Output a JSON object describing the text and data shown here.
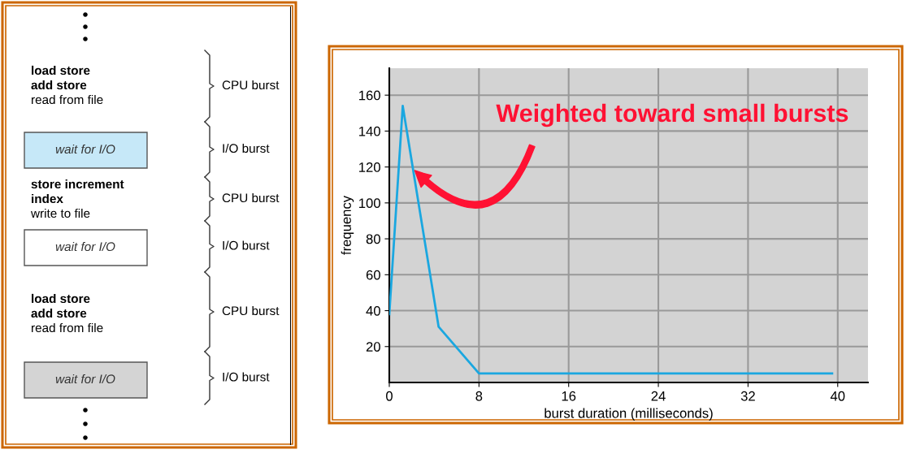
{
  "chart_data": [
    {
      "type": "other",
      "annotations": [
        "load store",
        "add store",
        "read from file",
        "CPU burst",
        "wait for I/O",
        "I/O burst",
        "store increment",
        "index",
        "write to file",
        "CPU burst",
        "wait for I/O",
        "I/O burst",
        "load store",
        "add store",
        "read from file",
        "CPU burst",
        "wait for I/O",
        "I/O burst"
      ]
    },
    {
      "type": "line",
      "xlabel": "burst duration (milliseconds)",
      "ylabel": "frequency",
      "x": [
        0,
        1.2,
        4.4,
        8,
        39.5
      ],
      "series": [
        {
          "color": "#1aa7e0",
          "values": [
            38,
            154,
            31,
            5,
            5
          ]
        }
      ],
      "xlim": [
        0,
        42.7
      ],
      "ylim": [
        0,
        175
      ],
      "xticks": [
        0,
        8,
        16,
        24,
        32,
        40
      ],
      "yticks": [
        20,
        40,
        60,
        80,
        100,
        120,
        140,
        160
      ],
      "grid": true,
      "marker": "none",
      "line_style": "solid",
      "annotations": [
        "Weighted toward small bursts"
      ]
    }
  ]
}
